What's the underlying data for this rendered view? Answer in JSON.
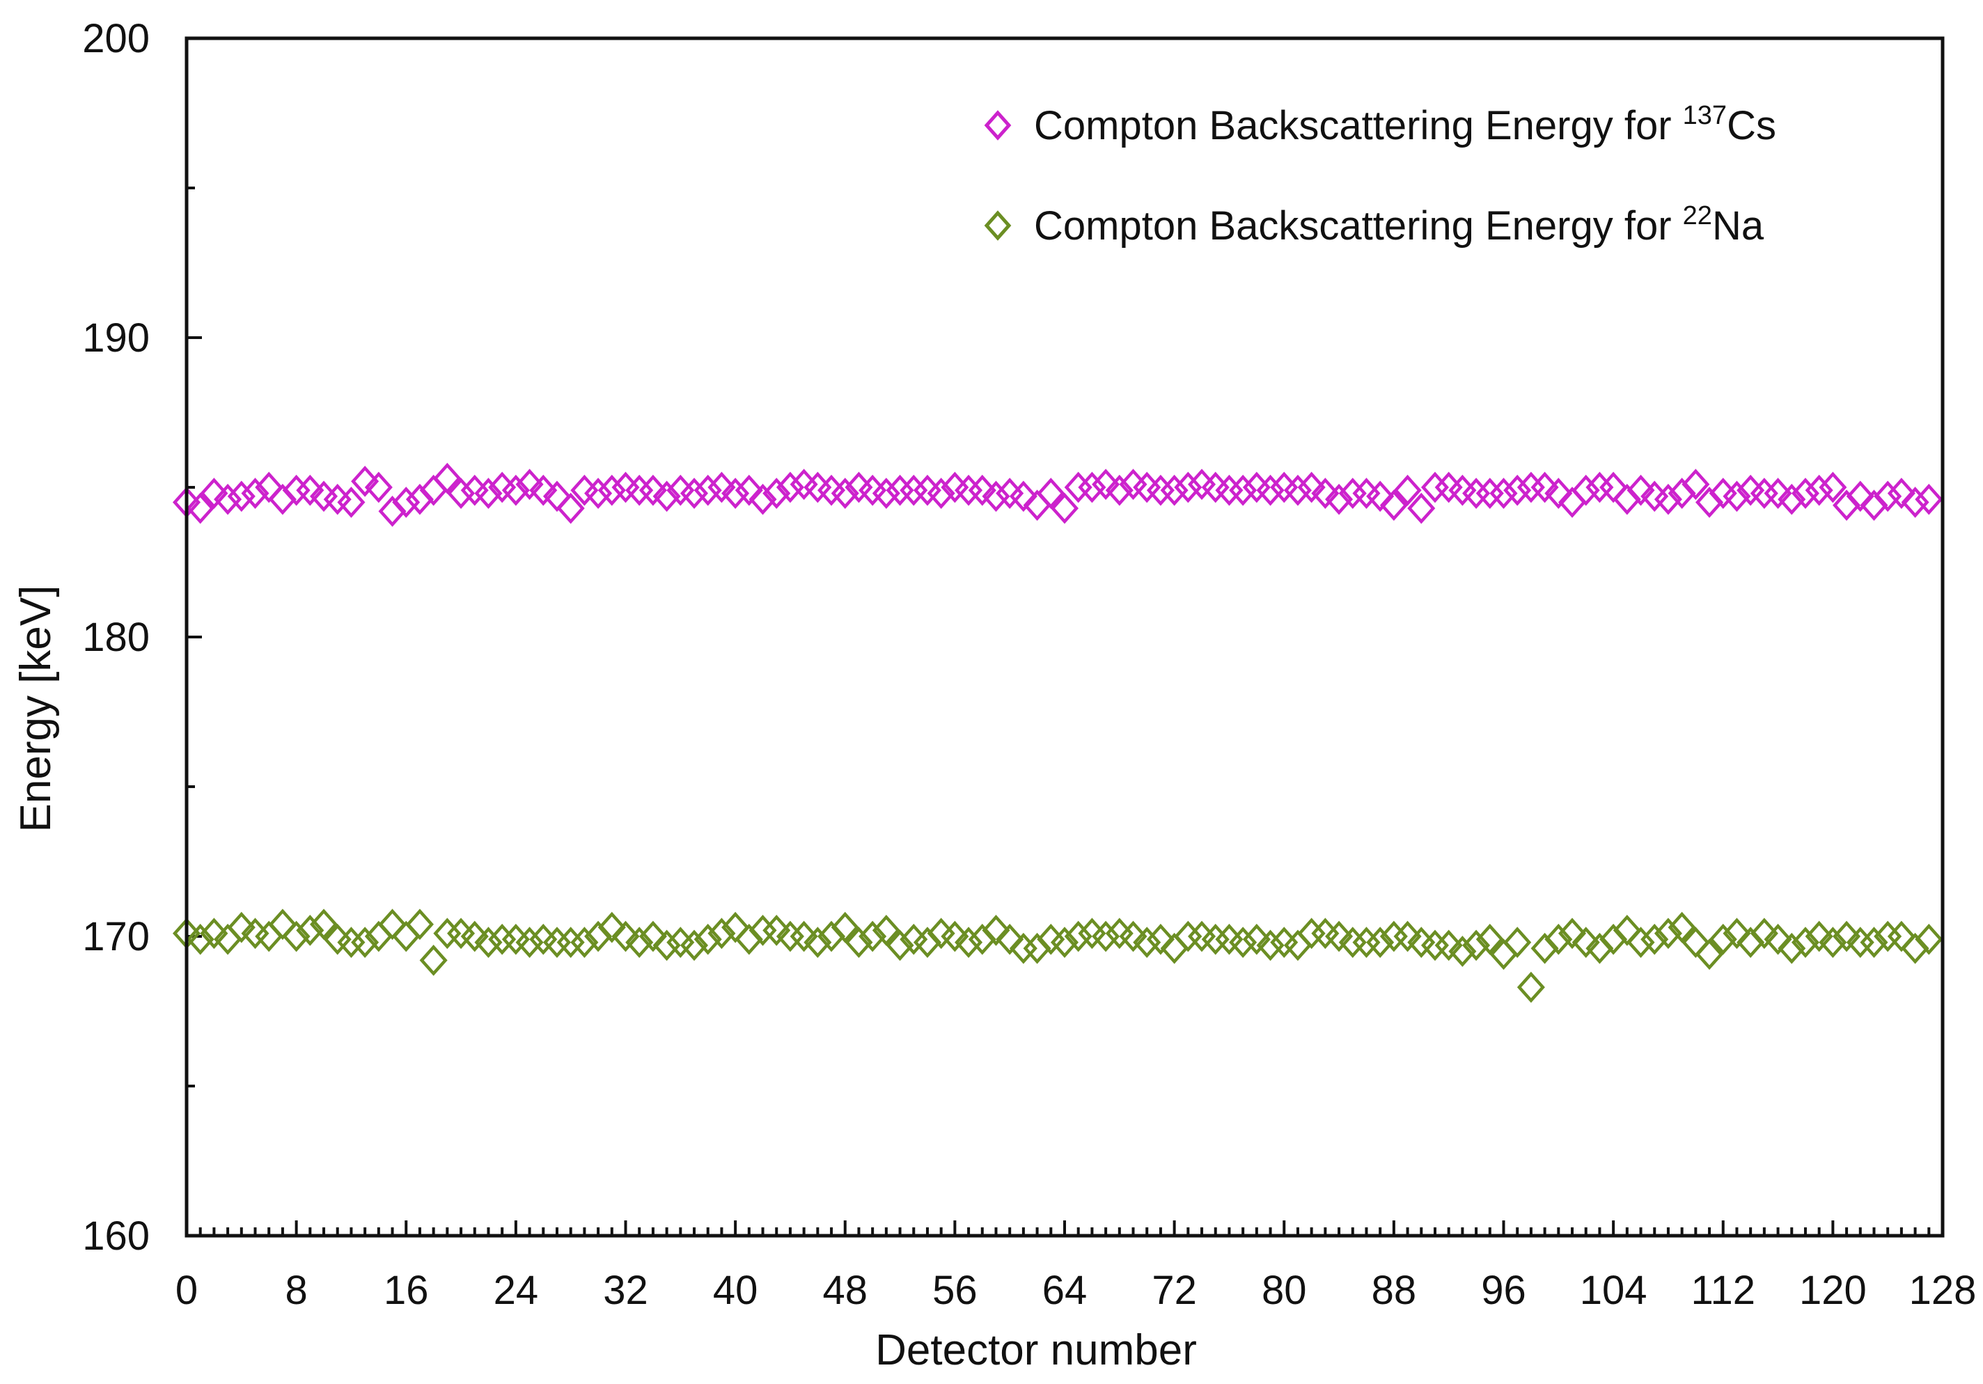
{
  "chart_data": {
    "type": "scatter",
    "title": "",
    "xlabel": "Detector number",
    "ylabel": "Energy [keV]",
    "xlim": [
      0,
      128
    ],
    "ylim": [
      160,
      200
    ],
    "x_ticks": [
      0,
      8,
      16,
      24,
      32,
      40,
      48,
      56,
      64,
      72,
      80,
      88,
      96,
      104,
      112,
      120,
      128
    ],
    "x_tick_labels": [
      "0",
      "8",
      "16",
      "24",
      "32",
      "40",
      "48",
      "56",
      "64",
      "72",
      "80",
      "88",
      "96",
      "104",
      "112",
      "120",
      "128"
    ],
    "y_ticks": [
      160,
      170,
      180,
      190,
      200
    ],
    "y_tick_labels": [
      "160",
      "170",
      "180",
      "190",
      "200"
    ],
    "x_minor_tick_step": 1,
    "y_minor_tick_step": 5,
    "marker": "diamond-open",
    "legend_position": "top-right",
    "series": [
      {
        "name": "Compton Backscattering Energy for 137Cs",
        "label_main": "Compton Backscattering Energy for ",
        "label_sup": "137",
        "label_end": "Cs",
        "color": "#CC22CC",
        "x": [
          0,
          1,
          2,
          3,
          4,
          5,
          6,
          7,
          8,
          9,
          10,
          11,
          12,
          13,
          14,
          15,
          16,
          17,
          18,
          19,
          20,
          21,
          22,
          23,
          24,
          25,
          26,
          27,
          28,
          29,
          30,
          31,
          32,
          33,
          34,
          35,
          36,
          37,
          38,
          39,
          40,
          41,
          42,
          43,
          44,
          45,
          46,
          47,
          48,
          49,
          50,
          51,
          52,
          53,
          54,
          55,
          56,
          57,
          58,
          59,
          60,
          61,
          62,
          63,
          64,
          65,
          66,
          67,
          68,
          69,
          70,
          71,
          72,
          73,
          74,
          75,
          76,
          77,
          78,
          79,
          80,
          81,
          82,
          83,
          84,
          85,
          86,
          87,
          88,
          89,
          90,
          91,
          92,
          93,
          94,
          95,
          96,
          97,
          98,
          99,
          100,
          101,
          102,
          103,
          104,
          105,
          106,
          107,
          108,
          109,
          110,
          111,
          112,
          113,
          114,
          115,
          116,
          117,
          118,
          119,
          120,
          121,
          122,
          123,
          124,
          125,
          126,
          127
        ],
        "values": [
          184.5,
          184.3,
          184.8,
          184.6,
          184.7,
          184.8,
          185.0,
          184.6,
          184.9,
          184.9,
          184.7,
          184.6,
          184.5,
          185.2,
          185.0,
          184.2,
          184.5,
          184.6,
          184.9,
          185.3,
          184.8,
          184.9,
          184.8,
          185.0,
          184.9,
          185.1,
          184.9,
          184.7,
          184.3,
          184.9,
          184.8,
          184.9,
          185.0,
          184.9,
          184.9,
          184.7,
          184.9,
          184.8,
          184.9,
          185.0,
          184.8,
          184.9,
          184.6,
          184.8,
          185.0,
          185.1,
          185.0,
          184.9,
          184.8,
          185.0,
          184.9,
          184.8,
          184.9,
          184.9,
          184.9,
          184.8,
          185.0,
          184.9,
          184.9,
          184.7,
          184.8,
          184.7,
          184.4,
          184.8,
          184.3,
          185.0,
          185.0,
          185.1,
          184.9,
          185.1,
          185.0,
          184.9,
          184.9,
          185.0,
          185.1,
          185.0,
          184.9,
          184.9,
          185.0,
          184.9,
          185.0,
          184.9,
          185.0,
          184.8,
          184.6,
          184.8,
          184.8,
          184.7,
          184.4,
          184.9,
          184.3,
          185.0,
          185.0,
          184.9,
          184.8,
          184.8,
          184.8,
          184.9,
          185.0,
          185.0,
          184.8,
          184.5,
          184.9,
          185.0,
          185.0,
          184.6,
          184.9,
          184.7,
          184.6,
          184.8,
          185.1,
          184.5,
          184.8,
          184.7,
          184.9,
          184.8,
          184.8,
          184.6,
          184.8,
          184.9,
          185.0,
          184.4,
          184.7,
          184.4,
          184.7,
          184.8,
          184.5,
          184.6
        ]
      },
      {
        "name": "Compton Backscattering Energy for 22Na",
        "label_main": "Compton Backscattering Energy for ",
        "label_sup": "22",
        "label_end": "Na",
        "color": "#6B8E23",
        "x": [
          0,
          1,
          2,
          3,
          4,
          5,
          6,
          7,
          8,
          9,
          10,
          11,
          12,
          13,
          14,
          15,
          16,
          17,
          18,
          19,
          20,
          21,
          22,
          23,
          24,
          25,
          26,
          27,
          28,
          29,
          30,
          31,
          32,
          33,
          34,
          35,
          36,
          37,
          38,
          39,
          40,
          41,
          42,
          43,
          44,
          45,
          46,
          47,
          48,
          49,
          50,
          51,
          52,
          53,
          54,
          55,
          56,
          57,
          58,
          59,
          60,
          61,
          62,
          63,
          64,
          65,
          66,
          67,
          68,
          69,
          70,
          71,
          72,
          73,
          74,
          75,
          76,
          77,
          78,
          79,
          80,
          81,
          82,
          83,
          84,
          85,
          86,
          87,
          88,
          89,
          90,
          91,
          92,
          93,
          94,
          95,
          96,
          97,
          98,
          99,
          100,
          101,
          102,
          103,
          104,
          105,
          106,
          107,
          108,
          109,
          110,
          111,
          112,
          113,
          114,
          115,
          116,
          117,
          118,
          119,
          120,
          121,
          122,
          123,
          124,
          125,
          126,
          127
        ],
        "values": [
          170.1,
          169.9,
          170.1,
          169.9,
          170.3,
          170.1,
          170.0,
          170.4,
          170.0,
          170.2,
          170.4,
          169.9,
          169.8,
          169.8,
          170.0,
          170.4,
          170.0,
          170.4,
          169.2,
          170.1,
          170.1,
          170.0,
          169.8,
          169.9,
          169.9,
          169.8,
          169.9,
          169.8,
          169.8,
          169.8,
          170.0,
          170.3,
          170.0,
          169.8,
          170.0,
          169.7,
          169.8,
          169.7,
          169.9,
          170.1,
          170.3,
          169.9,
          170.2,
          170.2,
          170.0,
          170.0,
          169.8,
          170.0,
          170.3,
          169.8,
          170.0,
          170.2,
          169.7,
          169.9,
          169.8,
          170.1,
          170.0,
          169.8,
          169.9,
          170.2,
          169.9,
          169.6,
          169.6,
          169.9,
          169.8,
          170.0,
          170.1,
          170.0,
          170.1,
          170.0,
          169.8,
          169.9,
          169.6,
          170.0,
          170.0,
          169.9,
          169.9,
          169.8,
          169.9,
          169.7,
          169.8,
          169.7,
          170.1,
          170.1,
          170.0,
          169.8,
          169.8,
          169.8,
          170.0,
          170.0,
          169.8,
          169.7,
          169.7,
          169.5,
          169.7,
          169.9,
          169.4,
          169.8,
          168.3,
          169.6,
          169.9,
          170.1,
          169.8,
          169.6,
          169.9,
          170.2,
          169.8,
          169.9,
          170.1,
          170.3,
          169.8,
          169.4,
          169.9,
          170.1,
          169.8,
          170.1,
          169.9,
          169.6,
          169.8,
          170.0,
          169.8,
          170.0,
          169.8,
          169.8,
          170.0,
          170.0,
          169.6,
          169.9
        ]
      }
    ]
  }
}
